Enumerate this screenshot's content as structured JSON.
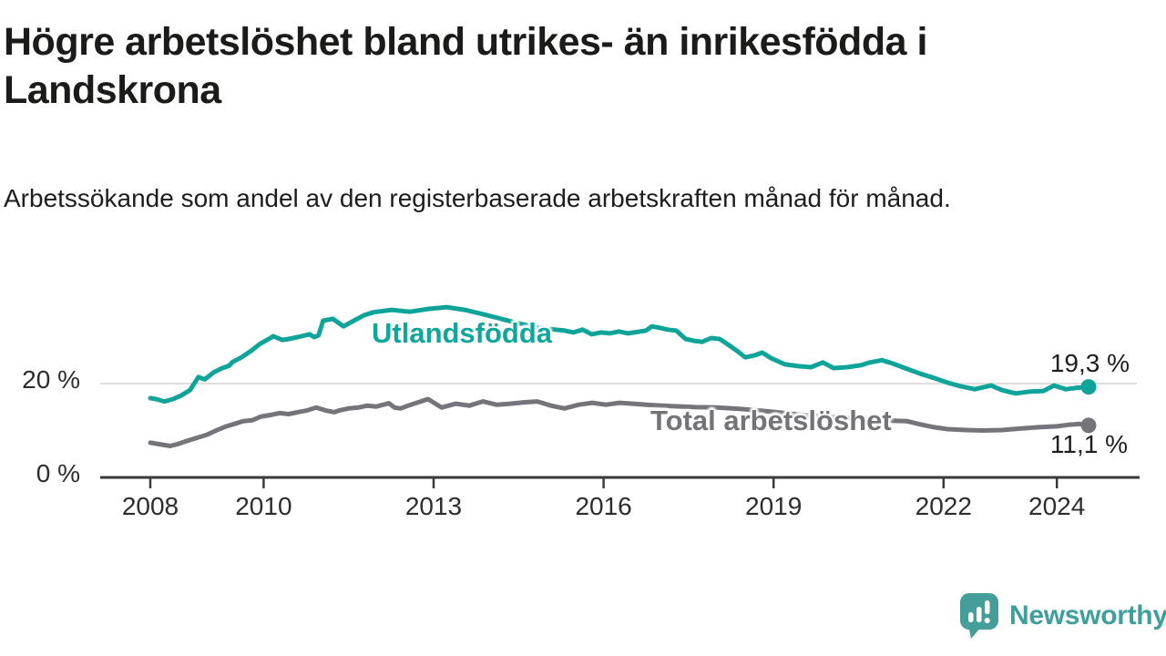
{
  "title": "Högre arbetslöshet bland utrikes- än inrikesfödda i Landskrona",
  "subtitle": "Arbetssökande som andel av den registerbaserade arbetskraften månad för månad.",
  "branding": {
    "logo_text": "Newsworthy",
    "logo_icon": "speech-bubble-bar-chart-exclamation",
    "brand_color": "#459e9a"
  },
  "colors": {
    "accent_teal": "#0fa49a",
    "series_gray": "#74747a",
    "gridline": "#dedede",
    "axis": "#3a3a3a",
    "text_dark": "#1b1b19"
  },
  "chart_data": {
    "type": "line",
    "title": "Högre arbetslöshet bland utrikes- än inrikesfödda i Landskrona",
    "subtitle": "Arbetssökande som andel av den registerbaserade arbetskraften månad för månad.",
    "unit": "%",
    "grid": "single horizontal gridline at 20 %",
    "legend_position": "inline-labels-on-lines",
    "x_axis": {
      "ticks": [
        "2008",
        "2010",
        "2013",
        "2016",
        "2019",
        "2022",
        "2024"
      ],
      "range": [
        2007.85,
        2025.1
      ]
    },
    "y_axis": {
      "ticks": [
        {
          "value": 0,
          "label": "0 %"
        },
        {
          "value": 20,
          "label": "20 %"
        }
      ],
      "range": [
        0,
        38
      ]
    },
    "series": [
      {
        "name": "Utlandsfödda",
        "color": "#0fa49a",
        "end_label": "19,3 %",
        "end_value": 19.3,
        "points": [
          [
            2008.0,
            16.9
          ],
          [
            2008.1,
            16.7
          ],
          [
            2008.25,
            16.2
          ],
          [
            2008.4,
            16.7
          ],
          [
            2008.55,
            17.5
          ],
          [
            2008.7,
            18.6
          ],
          [
            2008.85,
            21.4
          ],
          [
            2008.96,
            20.9
          ],
          [
            2009.12,
            22.4
          ],
          [
            2009.25,
            23.2
          ],
          [
            2009.39,
            23.8
          ],
          [
            2009.45,
            24.6
          ],
          [
            2009.61,
            25.6
          ],
          [
            2009.77,
            26.9
          ],
          [
            2009.93,
            28.4
          ],
          [
            2010.09,
            29.5
          ],
          [
            2010.17,
            30.1
          ],
          [
            2010.33,
            29.3
          ],
          [
            2010.44,
            29.5
          ],
          [
            2010.6,
            29.9
          ],
          [
            2010.81,
            30.5
          ],
          [
            2010.89,
            29.9
          ],
          [
            2010.97,
            30.3
          ],
          [
            2011.05,
            33.4
          ],
          [
            2011.22,
            33.8
          ],
          [
            2011.41,
            32.2
          ],
          [
            2011.62,
            33.6
          ],
          [
            2011.78,
            34.6
          ],
          [
            2011.94,
            35.2
          ],
          [
            2012.26,
            35.7
          ],
          [
            2012.58,
            35.3
          ],
          [
            2012.9,
            35.9
          ],
          [
            2013.23,
            36.3
          ],
          [
            2013.55,
            35.7
          ],
          [
            2013.87,
            34.8
          ],
          [
            2014.19,
            33.8
          ],
          [
            2014.51,
            32.8
          ],
          [
            2014.83,
            31.9
          ],
          [
            2015.15,
            31.5
          ],
          [
            2015.31,
            31.3
          ],
          [
            2015.47,
            30.9
          ],
          [
            2015.63,
            31.5
          ],
          [
            2015.79,
            30.5
          ],
          [
            2015.95,
            30.9
          ],
          [
            2016.11,
            30.7
          ],
          [
            2016.27,
            31.1
          ],
          [
            2016.43,
            30.7
          ],
          [
            2016.59,
            31.0
          ],
          [
            2016.75,
            31.3
          ],
          [
            2016.85,
            32.2
          ],
          [
            2016.98,
            31.9
          ],
          [
            2017.13,
            31.5
          ],
          [
            2017.28,
            31.3
          ],
          [
            2017.45,
            29.5
          ],
          [
            2017.6,
            29.1
          ],
          [
            2017.74,
            28.9
          ],
          [
            2017.9,
            29.7
          ],
          [
            2018.05,
            29.5
          ],
          [
            2018.2,
            28.3
          ],
          [
            2018.35,
            27.0
          ],
          [
            2018.5,
            25.6
          ],
          [
            2018.66,
            26.0
          ],
          [
            2018.8,
            26.6
          ],
          [
            2018.96,
            25.4
          ],
          [
            2019.2,
            24.1
          ],
          [
            2019.44,
            23.7
          ],
          [
            2019.66,
            23.5
          ],
          [
            2019.87,
            24.5
          ],
          [
            2020.06,
            23.3
          ],
          [
            2020.3,
            23.5
          ],
          [
            2020.54,
            23.9
          ],
          [
            2020.7,
            24.5
          ],
          [
            2020.91,
            25.0
          ],
          [
            2021.1,
            24.3
          ],
          [
            2021.34,
            23.2
          ],
          [
            2021.59,
            22.1
          ],
          [
            2021.83,
            21.2
          ],
          [
            2022.07,
            20.2
          ],
          [
            2022.31,
            19.4
          ],
          [
            2022.55,
            18.8
          ],
          [
            2022.84,
            19.6
          ],
          [
            2023.03,
            18.6
          ],
          [
            2023.27,
            17.9
          ],
          [
            2023.52,
            18.3
          ],
          [
            2023.76,
            18.4
          ],
          [
            2023.95,
            19.6
          ],
          [
            2024.16,
            18.8
          ],
          [
            2024.35,
            19.1
          ],
          [
            2024.56,
            19.3
          ]
        ]
      },
      {
        "name": "Total arbetslöshet",
        "color": "#74747a",
        "end_label": "11,1 %",
        "end_value": 11.1,
        "points": [
          [
            2008.0,
            7.4
          ],
          [
            2008.19,
            7.0
          ],
          [
            2008.35,
            6.7
          ],
          [
            2008.51,
            7.2
          ],
          [
            2008.68,
            7.9
          ],
          [
            2008.84,
            8.5
          ],
          [
            2009.0,
            9.1
          ],
          [
            2009.16,
            10.0
          ],
          [
            2009.32,
            10.8
          ],
          [
            2009.48,
            11.4
          ],
          [
            2009.64,
            12.0
          ],
          [
            2009.8,
            12.2
          ],
          [
            2009.96,
            13.0
          ],
          [
            2010.12,
            13.3
          ],
          [
            2010.28,
            13.7
          ],
          [
            2010.44,
            13.5
          ],
          [
            2010.6,
            13.9
          ],
          [
            2010.77,
            14.3
          ],
          [
            2010.93,
            14.9
          ],
          [
            2011.09,
            14.3
          ],
          [
            2011.25,
            13.9
          ],
          [
            2011.34,
            14.3
          ],
          [
            2011.5,
            14.7
          ],
          [
            2011.67,
            14.9
          ],
          [
            2011.83,
            15.3
          ],
          [
            2011.99,
            15.1
          ],
          [
            2012.21,
            15.8
          ],
          [
            2012.31,
            14.9
          ],
          [
            2012.42,
            14.7
          ],
          [
            2012.55,
            15.3
          ],
          [
            2012.9,
            16.7
          ],
          [
            2013.14,
            14.9
          ],
          [
            2013.39,
            15.7
          ],
          [
            2013.63,
            15.3
          ],
          [
            2013.87,
            16.2
          ],
          [
            2014.11,
            15.5
          ],
          [
            2014.35,
            15.7
          ],
          [
            2014.59,
            16.0
          ],
          [
            2014.83,
            16.2
          ],
          [
            2015.07,
            15.3
          ],
          [
            2015.31,
            14.7
          ],
          [
            2015.56,
            15.5
          ],
          [
            2015.8,
            15.9
          ],
          [
            2016.04,
            15.5
          ],
          [
            2016.28,
            15.9
          ],
          [
            2016.52,
            15.7
          ],
          [
            2016.76,
            15.5
          ],
          [
            2016.9,
            15.4
          ],
          [
            2017.2,
            15.2
          ],
          [
            2017.6,
            15.0
          ],
          [
            2018.0,
            14.9
          ],
          [
            2018.4,
            14.6
          ],
          [
            2018.8,
            14.2
          ],
          [
            2019.2,
            13.7
          ],
          [
            2019.6,
            13.2
          ],
          [
            2020.0,
            12.9
          ],
          [
            2020.4,
            12.6
          ],
          [
            2020.8,
            12.3
          ],
          [
            2021.1,
            12.1
          ],
          [
            2021.35,
            12.0
          ],
          [
            2021.59,
            11.3
          ],
          [
            2021.83,
            10.7
          ],
          [
            2022.07,
            10.3
          ],
          [
            2022.4,
            10.1
          ],
          [
            2022.7,
            10.0
          ],
          [
            2023.03,
            10.1
          ],
          [
            2023.35,
            10.4
          ],
          [
            2023.68,
            10.7
          ],
          [
            2024.0,
            10.9
          ],
          [
            2024.2,
            11.2
          ],
          [
            2024.4,
            11.4
          ],
          [
            2024.56,
            11.1
          ]
        ]
      }
    ]
  }
}
